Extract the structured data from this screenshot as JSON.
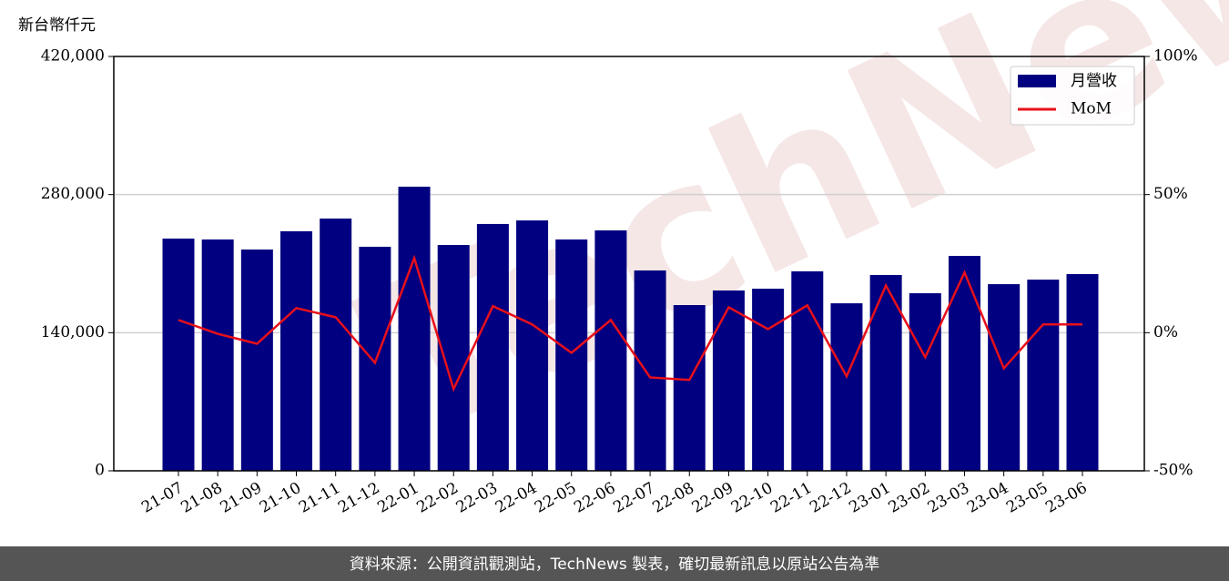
{
  "chart_data": {
    "type": "bar_line",
    "y_axis_label": "新台幣仟元",
    "watermark": "TechNews",
    "footer": "資料來源：公開資訊觀測站，TechNews 製表，確切最新訊息以原站公告為準",
    "categories": [
      "21-07",
      "21-08",
      "21-09",
      "21-10",
      "21-11",
      "21-12",
      "22-01",
      "22-02",
      "22-03",
      "22-04",
      "22-05",
      "22-06",
      "22-07",
      "22-08",
      "22-09",
      "22-10",
      "22-11",
      "22-12",
      "23-01",
      "23-02",
      "23-03",
      "23-04",
      "23-05",
      "23-06"
    ],
    "series": [
      {
        "name": "月營收",
        "type": "bar",
        "color": "#000080",
        "values": [
          235400,
          234500,
          224300,
          242800,
          255700,
          227100,
          288000,
          228900,
          250200,
          253800,
          234500,
          243700,
          203100,
          168000,
          182800,
          184600,
          202200,
          169800,
          198500,
          180000,
          217800,
          189200,
          193800,
          199400
        ]
      },
      {
        "name": "MoM",
        "type": "line",
        "axis": "y2",
        "color": "#e8101a",
        "values": [
          4.6,
          -0.4,
          -4.0,
          8.9,
          5.6,
          -10.9,
          27.0,
          -20.4,
          9.6,
          3.0,
          -7.3,
          4.6,
          -16.2,
          -17.1,
          9.2,
          1.3,
          9.9,
          -15.8,
          17.1,
          -8.9,
          21.8,
          -12.9,
          3.0,
          3.0
        ]
      }
    ],
    "ylim": [
      0,
      420000
    ],
    "yticks": [
      {
        "value": 0,
        "label": "0"
      },
      {
        "value": 140000,
        "label": "140,000"
      },
      {
        "value": 280000,
        "label": "280,000"
      },
      {
        "value": 420000,
        "label": "420,000"
      }
    ],
    "y2lim": [
      -50,
      100
    ],
    "y2ticks": [
      {
        "value": -50,
        "label": "-50%"
      },
      {
        "value": 0,
        "label": "0%"
      },
      {
        "value": 50,
        "label": "50%"
      },
      {
        "value": 100,
        "label": "100%"
      }
    ],
    "grid": true,
    "legend": "upper right"
  }
}
